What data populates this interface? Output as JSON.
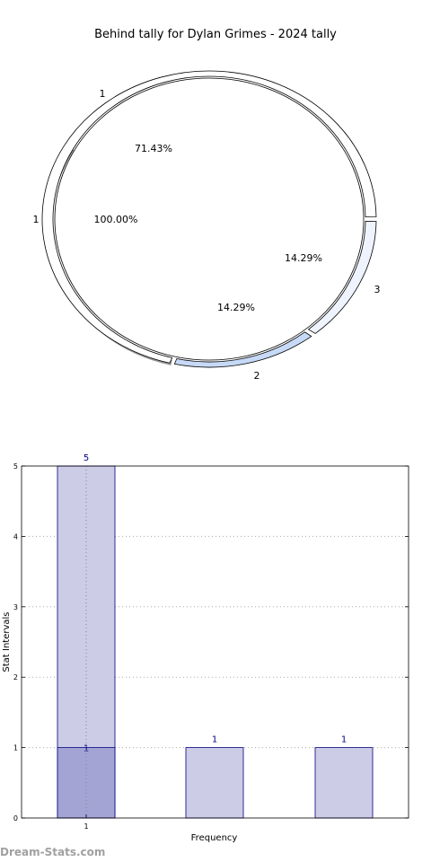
{
  "chart_data": [
    {
      "type": "pie",
      "title": "Behind tally for Dylan Grimes - 2024 tally",
      "rings": [
        {
          "name": "outer",
          "slices": [
            {
              "label": "1",
              "percent_label": "71.43%",
              "value": 5,
              "color": "#ffffff"
            },
            {
              "label": "3",
              "percent_label": "14.29%",
              "value": 1,
              "color": "#c6d9f7"
            },
            {
              "label": "2",
              "percent_label": "14.29%",
              "value": 1,
              "color": "#eef3fd"
            }
          ]
        },
        {
          "name": "inner",
          "slices": [
            {
              "label": "1",
              "percent_label": "100.00%",
              "value": 1,
              "color": "#ffffff"
            }
          ]
        }
      ]
    },
    {
      "type": "bar",
      "xlabel": "Frequency",
      "ylabel": "Stat Intervals",
      "ylim": [
        0,
        5
      ],
      "yticks": [
        "0",
        "1",
        "2",
        "3",
        "4",
        "5"
      ],
      "xtick_labels": [
        "1",
        "",
        ""
      ],
      "grid": true,
      "bars": [
        {
          "value": 5,
          "label": "5",
          "color": "#cccce6"
        },
        {
          "value": 1,
          "label": "1",
          "color": "#cccce6"
        },
        {
          "value": 1,
          "label": "1",
          "color": "#cccce6"
        }
      ],
      "overlay": {
        "bar_index": 0,
        "value": 1,
        "label": "1",
        "color": "#a3a3d4"
      }
    }
  ],
  "watermark": "Dream-Stats.com"
}
